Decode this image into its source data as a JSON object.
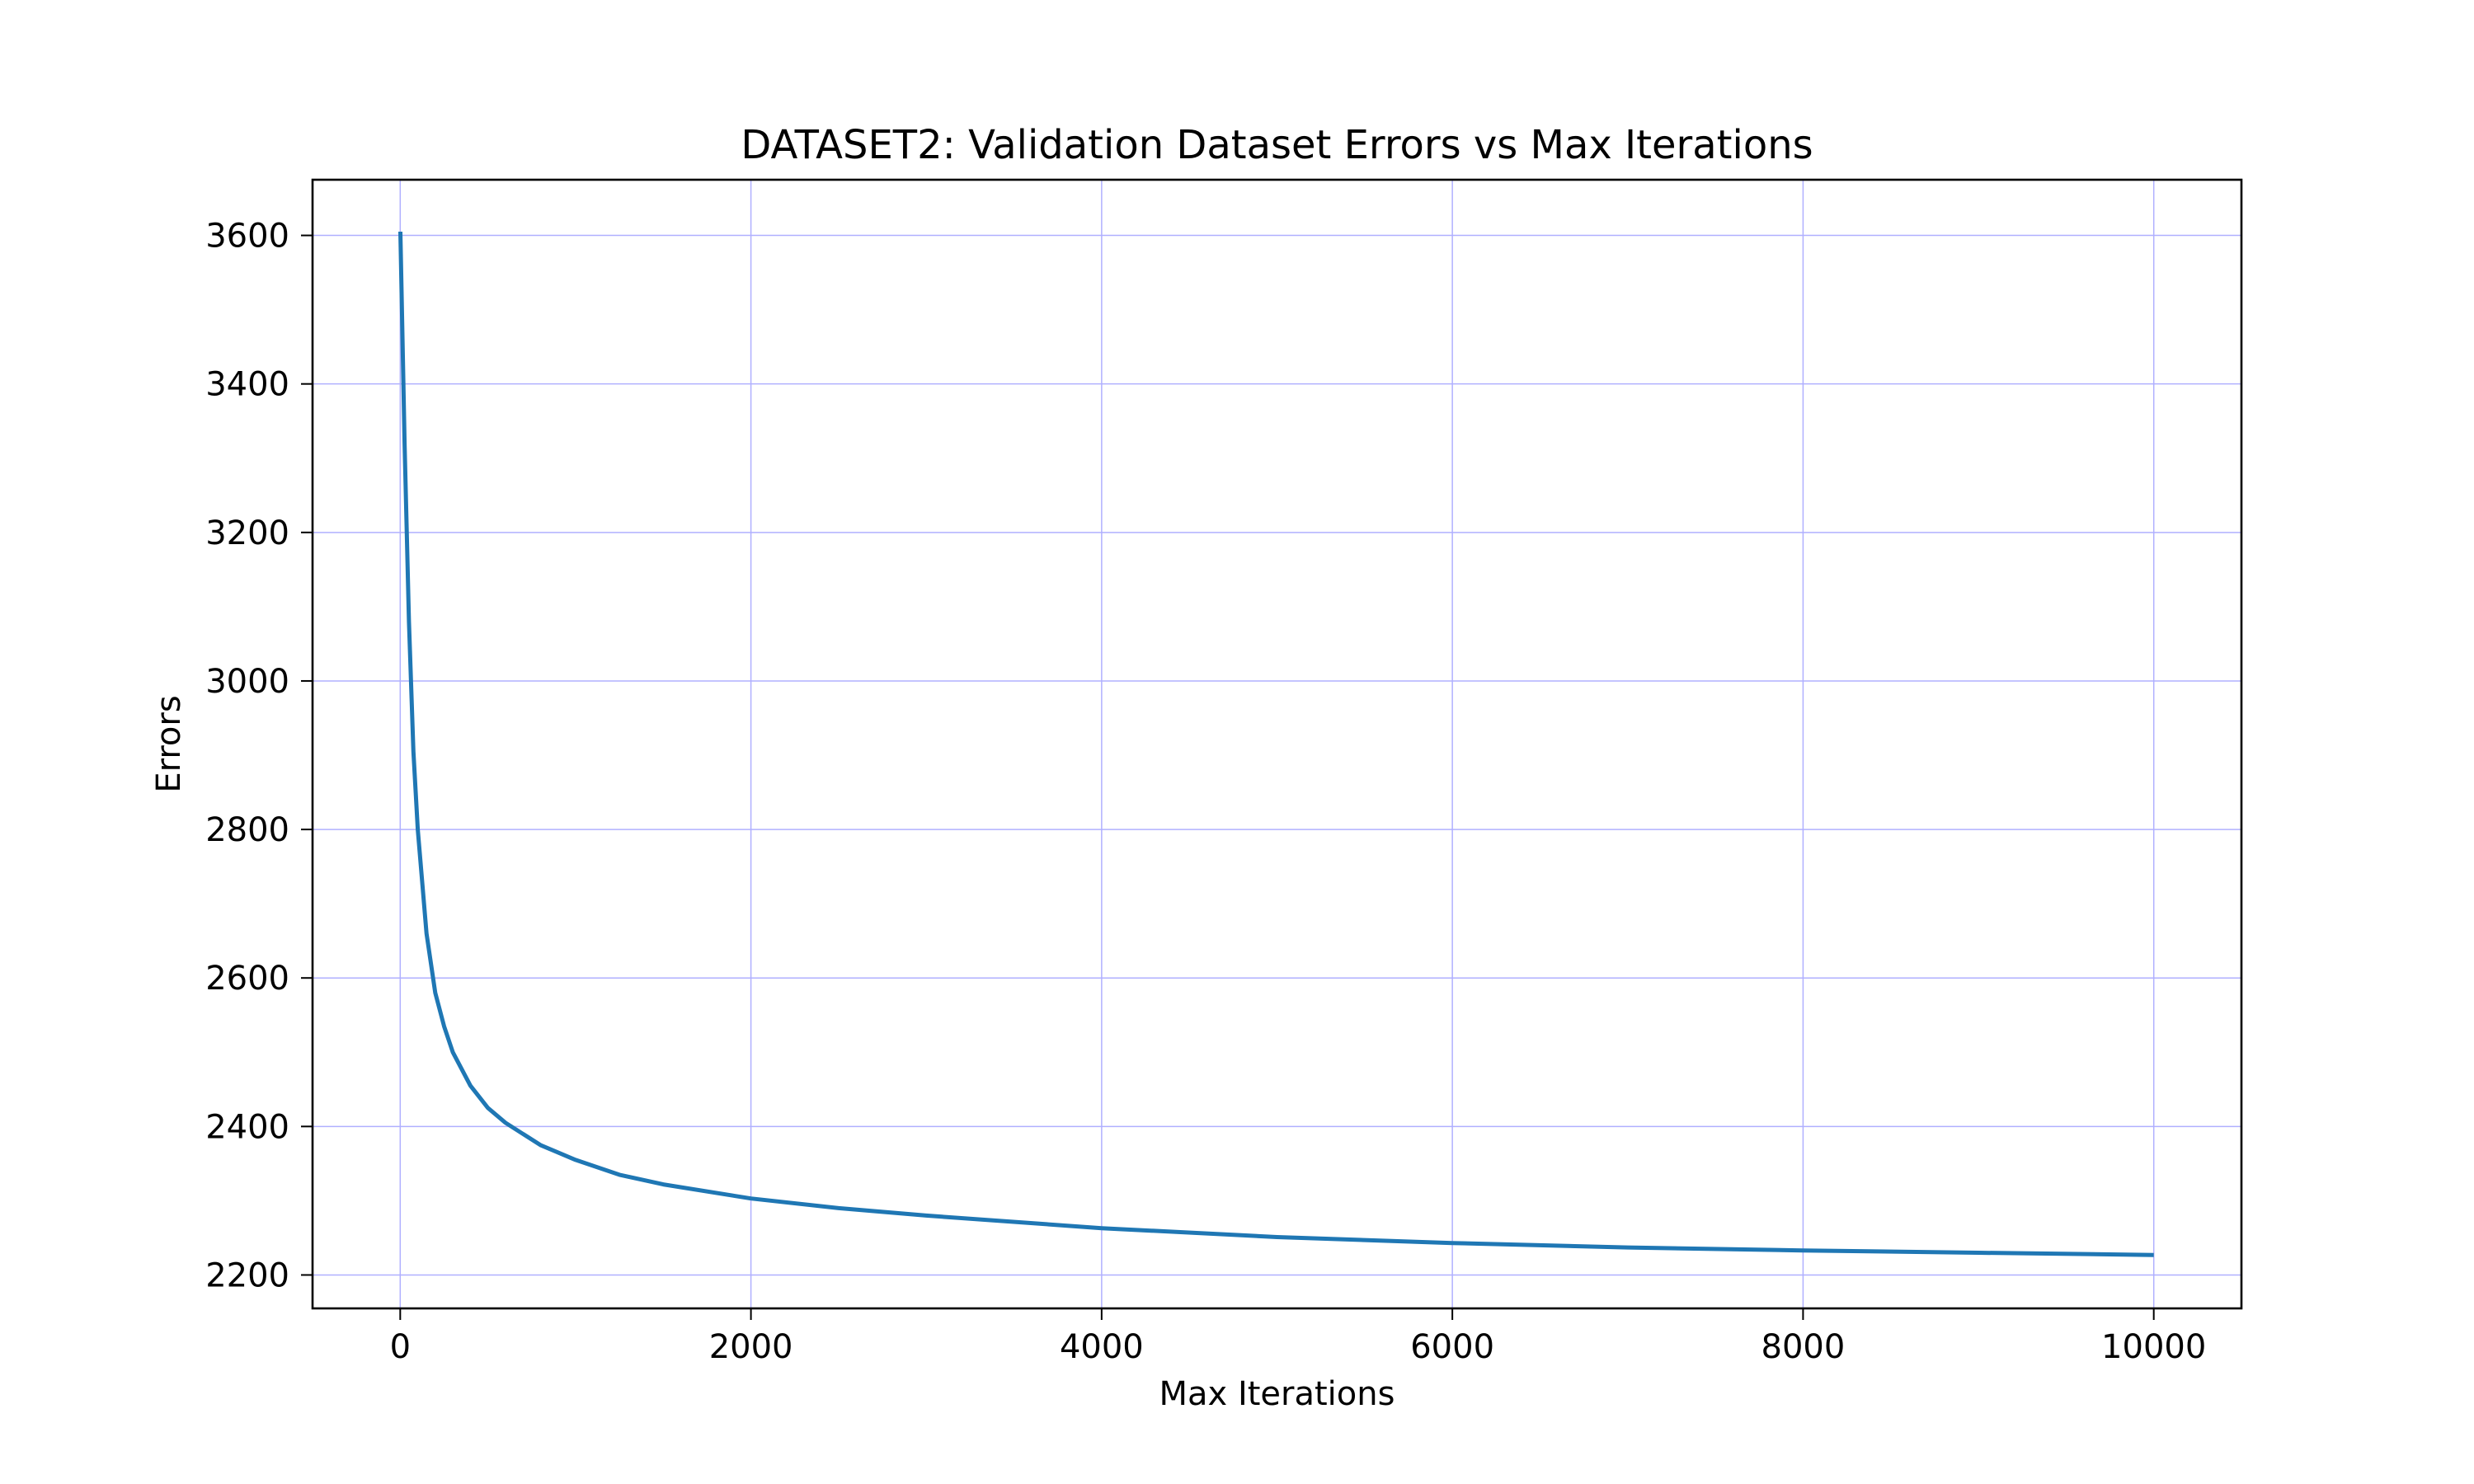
{
  "chart_data": {
    "type": "line",
    "title": "DATASET2: Validation Dataset Errors vs Max Iterations",
    "xlabel": "Max Iterations",
    "ylabel": "Errors",
    "xlim": [
      -500,
      10500
    ],
    "ylim": [
      2155,
      3675
    ],
    "xticks": [
      0,
      2000,
      4000,
      6000,
      8000,
      10000
    ],
    "yticks": [
      2200,
      2400,
      2600,
      2800,
      3000,
      3200,
      3400,
      3600
    ],
    "grid": true,
    "legend": "none",
    "colors": {
      "line": "#1f77b4",
      "grid": "#b0b0ff",
      "axes": "#000000"
    },
    "series": [
      {
        "x": [
          1,
          25,
          50,
          75,
          100,
          150,
          200,
          250,
          300,
          400,
          500,
          600,
          800,
          1000,
          1250,
          1500,
          2000,
          2500,
          3000,
          4000,
          5000,
          6000,
          7000,
          8000,
          9000,
          10000
        ],
        "y": [
          3605,
          3320,
          3080,
          2905,
          2800,
          2660,
          2580,
          2535,
          2500,
          2455,
          2425,
          2405,
          2375,
          2355,
          2335,
          2322,
          2303,
          2290,
          2280,
          2263,
          2251,
          2243,
          2237,
          2233,
          2230,
          2227
        ]
      }
    ]
  }
}
